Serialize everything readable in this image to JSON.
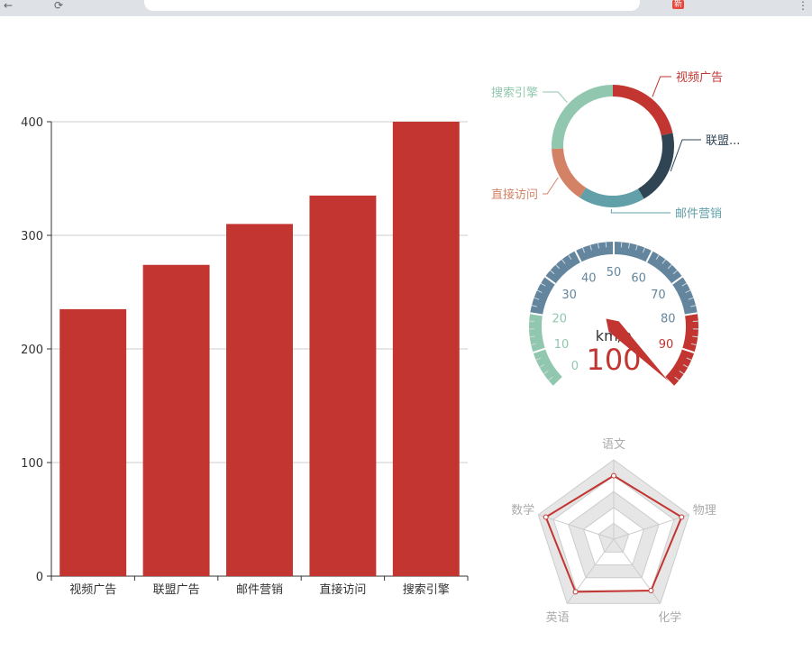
{
  "browser": {
    "badge": "新"
  },
  "chart_data": [
    {
      "type": "bar",
      "categories": [
        "视频广告",
        "联盟广告",
        "邮件营销",
        "直接访问",
        "搜索引擎"
      ],
      "values": [
        235,
        274,
        310,
        335,
        400
      ],
      "ylim": [
        0,
        400
      ],
      "yticks": [
        0,
        100,
        200,
        300,
        400
      ],
      "grid": true,
      "color": "#c23531"
    },
    {
      "type": "pie",
      "subtype": "donut",
      "labels": [
        "视频广告",
        "联盟...",
        "邮件营销",
        "直接访问",
        "搜索引擎"
      ],
      "values": [
        335,
        310,
        274,
        235,
        400
      ],
      "colors": [
        "#c23531",
        "#2f4554",
        "#61a0a8",
        "#d48265",
        "#91c7ae"
      ]
    },
    {
      "type": "gauge",
      "value": 100,
      "unit": "km/h",
      "ticks": [
        0,
        10,
        20,
        30,
        40,
        50,
        60,
        70,
        80,
        90
      ],
      "range": [
        0,
        100
      ],
      "bands": [
        {
          "to": 0.2,
          "color": "#91c7ae"
        },
        {
          "to": 0.8,
          "color": "#63869e"
        },
        {
          "to": 1.0,
          "color": "#c23531"
        }
      ]
    },
    {
      "type": "radar",
      "indicators": [
        "语文",
        "物理",
        "化学",
        "英语",
        "数学"
      ],
      "max": 100,
      "values": [
        80,
        90,
        80,
        82,
        90
      ],
      "color": "#c23531"
    }
  ]
}
